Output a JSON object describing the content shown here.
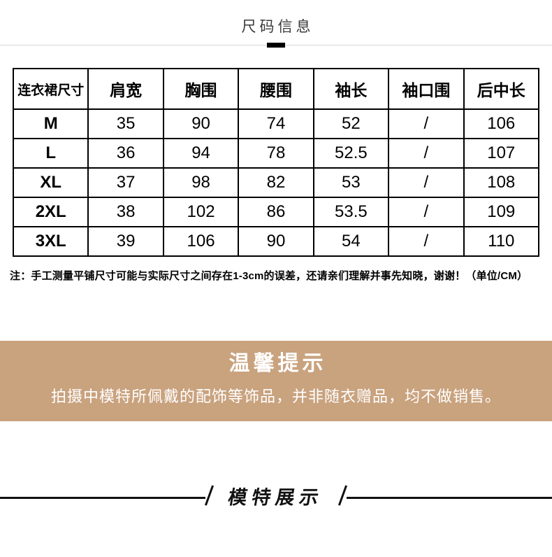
{
  "title_section": {
    "title": "尺码信息"
  },
  "size_table": {
    "headers": [
      "连衣裙尺寸",
      "肩宽",
      "胸围",
      "腰围",
      "袖长",
      "袖口围",
      "后中长"
    ],
    "rows": [
      [
        "M",
        "35",
        "90",
        "74",
        "52",
        "/",
        "106"
      ],
      [
        "L",
        "36",
        "94",
        "78",
        "52.5",
        "/",
        "107"
      ],
      [
        "XL",
        "37",
        "98",
        "82",
        "53",
        "/",
        "108"
      ],
      [
        "2XL",
        "38",
        "102",
        "86",
        "53.5",
        "/",
        "109"
      ],
      [
        "3XL",
        "39",
        "106",
        "90",
        "54",
        "/",
        "110"
      ]
    ]
  },
  "note": {
    "text": "注：手工测量平铺尺寸可能与实际尺寸之间存在1-3cm的误差，还请亲们理解并事先知晓，谢谢！（单位/CM）"
  },
  "notice": {
    "title": "温馨提示",
    "body": "拍摄中模特所佩戴的配饰等饰品，并非随衣赠品，均不做销售。",
    "background_color": "#c9a27e",
    "text_color": "#ffffff"
  },
  "footer": {
    "title": "模特展示"
  }
}
